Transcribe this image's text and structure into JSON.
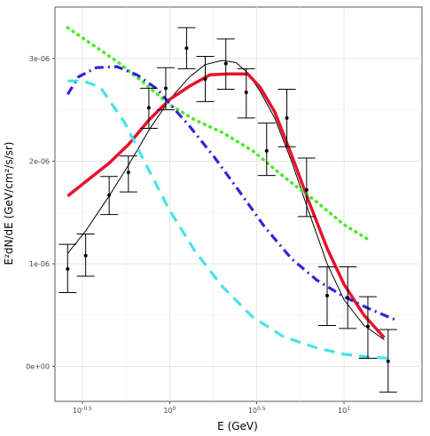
{
  "chart_data": {
    "type": "line",
    "title": "",
    "xlabel": "E (GeV)",
    "ylabel": "E²dN/dE (GeV/cm²/s/sr)",
    "x_scale": "log10",
    "xlim": [
      0.22,
      28
    ],
    "ylim": [
      -3.4e-07,
      3.5e-06
    ],
    "grid": true,
    "legend": "none",
    "x_ticks": [
      {
        "value": 0.316,
        "label": "10",
        "sup": "-0.5"
      },
      {
        "value": 1,
        "label": "10",
        "sup": "0"
      },
      {
        "value": 3.162,
        "label": "10",
        "sup": "0.5"
      },
      {
        "value": 10,
        "label": "10",
        "sup": "1"
      }
    ],
    "y_ticks": [
      {
        "value": 0,
        "label": "0e+00"
      },
      {
        "value": 1e-06,
        "label": "1e-06"
      },
      {
        "value": 2e-06,
        "label": "2e-06"
      },
      {
        "value": 3e-06,
        "label": "3e-06"
      }
    ],
    "data_points": [
      {
        "x": 0.26,
        "y": 9.5e-07,
        "ylo": 7.2e-07,
        "yhi": 1.19e-06
      },
      {
        "x": 0.33,
        "y": 1.08e-06,
        "ylo": 8.8e-07,
        "yhi": 1.29e-06
      },
      {
        "x": 0.45,
        "y": 1.67e-06,
        "ylo": 1.48e-06,
        "yhi": 1.85e-06
      },
      {
        "x": 0.58,
        "y": 1.89e-06,
        "ylo": 1.7e-06,
        "yhi": 2.05e-06
      },
      {
        "x": 0.76,
        "y": 2.52e-06,
        "ylo": 2.32e-06,
        "yhi": 2.71e-06
      },
      {
        "x": 0.95,
        "y": 2.71e-06,
        "ylo": 2.5e-06,
        "yhi": 2.91e-06
      },
      {
        "x": 1.25,
        "y": 3.1e-06,
        "ylo": 2.9e-06,
        "yhi": 3.3e-06
      },
      {
        "x": 1.6,
        "y": 2.8e-06,
        "ylo": 2.58e-06,
        "yhi": 3.02e-06
      },
      {
        "x": 2.1,
        "y": 2.95e-06,
        "ylo": 2.7e-06,
        "yhi": 3.19e-06
      },
      {
        "x": 2.75,
        "y": 2.67e-06,
        "ylo": 2.42e-06,
        "yhi": 2.9e-06
      },
      {
        "x": 3.6,
        "y": 2.1e-06,
        "ylo": 1.86e-06,
        "yhi": 2.37e-06
      },
      {
        "x": 4.7,
        "y": 2.42e-06,
        "ylo": 2.14e-06,
        "yhi": 2.7e-06
      },
      {
        "x": 6.1,
        "y": 1.72e-06,
        "ylo": 1.46e-06,
        "yhi": 2.03e-06
      },
      {
        "x": 8.0,
        "y": 6.9e-07,
        "ylo": 4e-07,
        "yhi": 9.7e-07
      },
      {
        "x": 10.5,
        "y": 6.7e-07,
        "ylo": 3.7e-07,
        "yhi": 9.7e-07
      },
      {
        "x": 13.7,
        "y": 3.9e-07,
        "ylo": 8e-08,
        "yhi": 6.8e-07
      },
      {
        "x": 17.9,
        "y": 5e-08,
        "ylo": -2.5e-07,
        "yhi": 3.6e-07
      }
    ],
    "series": [
      {
        "style": "solid-thin",
        "color": "#000000",
        "x": [
          0.26,
          0.33,
          0.45,
          0.58,
          0.76,
          1.0,
          1.3,
          1.6,
          2.0,
          2.4,
          2.8,
          3.3,
          4.0,
          5.0,
          6.3,
          8.0,
          10.0,
          13.0,
          17.0
        ],
        "y": [
          1.1e-06,
          1.32e-06,
          1.66e-06,
          1.96e-06,
          2.3e-06,
          2.6e-06,
          2.82e-06,
          2.94e-06,
          2.98e-06,
          2.96e-06,
          2.86e-06,
          2.68e-06,
          2.42e-06,
          2e-06,
          1.5e-06,
          1e-06,
          6.5e-07,
          4e-07,
          2.6e-07
        ]
      },
      {
        "style": "solid-thick",
        "color": "#e8112d",
        "x": [
          0.26,
          0.33,
          0.45,
          0.58,
          0.76,
          1.0,
          1.3,
          1.7,
          2.2,
          2.8,
          3.3,
          4.0,
          5.0,
          6.3,
          8.0,
          10.0,
          13.0,
          17.0
        ],
        "y": [
          1.66e-06,
          1.8e-06,
          1.98e-06,
          2.16e-06,
          2.4e-06,
          2.6e-06,
          2.73e-06,
          2.84e-06,
          2.85e-06,
          2.85e-06,
          2.72e-06,
          2.48e-06,
          2.06e-06,
          1.6e-06,
          1.15e-06,
          8e-07,
          5e-07,
          2.8e-07
        ]
      },
      {
        "style": "dotted",
        "color": "#44ee22",
        "x": [
          0.26,
          0.35,
          0.5,
          0.7,
          1.0,
          1.4,
          2.0,
          3.0,
          4.5,
          7.0,
          10.0,
          14.0
        ],
        "y": [
          3.3e-06,
          3.15e-06,
          2.97e-06,
          2.77e-06,
          2.55e-06,
          2.4e-06,
          2.28e-06,
          2.1e-06,
          1.85e-06,
          1.6e-06,
          1.38e-06,
          1.23e-06
        ]
      },
      {
        "style": "dashdot",
        "color": "#3322dd",
        "x": [
          0.26,
          0.3,
          0.38,
          0.5,
          0.65,
          0.85,
          1.0,
          1.3,
          1.8,
          2.5,
          3.5,
          5.0,
          7.0,
          10.0,
          14.0,
          20.0
        ],
        "y": [
          2.65e-06,
          2.82e-06,
          2.91e-06,
          2.92e-06,
          2.84e-06,
          2.7e-06,
          2.56e-06,
          2.34e-06,
          2.04e-06,
          1.71e-06,
          1.36e-06,
          1.05e-06,
          8.4e-07,
          6.8e-07,
          5.6e-07,
          4.5e-07
        ]
      },
      {
        "style": "dashed",
        "color": "#44e4e8",
        "x": [
          0.26,
          0.32,
          0.4,
          0.55,
          0.75,
          1.0,
          1.4,
          2.0,
          3.0,
          4.5,
          7.0,
          10.0,
          14.0,
          18.0
        ],
        "y": [
          2.78e-06,
          2.78e-06,
          2.72e-06,
          2.38e-06,
          1.93e-06,
          1.52e-06,
          1.12e-06,
          7.8e-07,
          4.8e-07,
          2.9e-07,
          1.8e-07,
          1.2e-07,
          9e-08,
          8e-08
        ]
      }
    ]
  }
}
